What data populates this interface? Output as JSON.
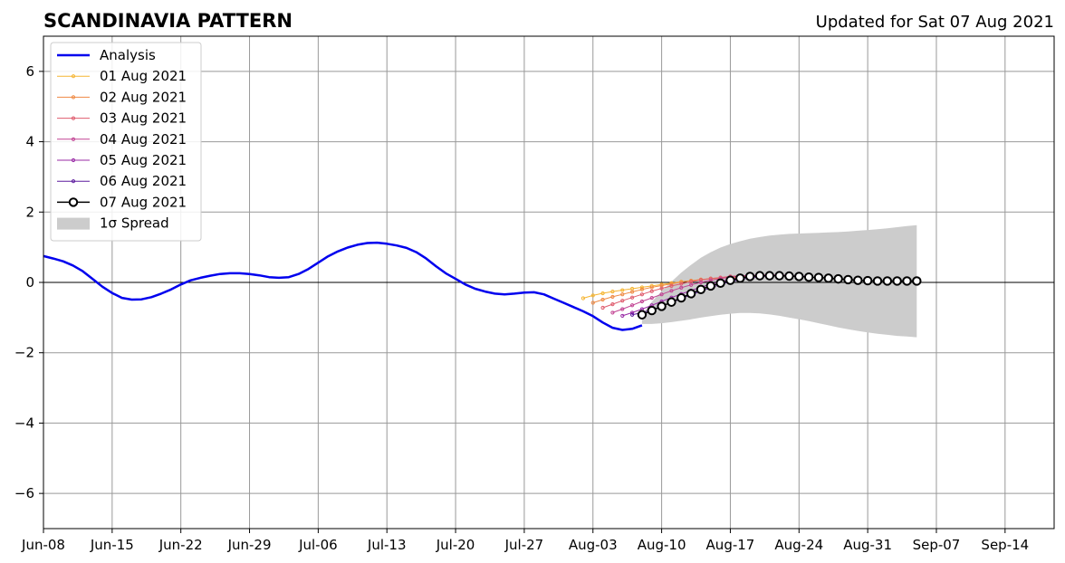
{
  "chart_data": {
    "type": "line",
    "title": "SCANDINAVIA PATTERN",
    "subtitle": "Updated for Sat 07 Aug 2021",
    "xlabel": "",
    "ylabel": "",
    "x_axis": {
      "start": "2021-06-08",
      "end": "2021-09-19",
      "ticks": [
        {
          "date": "2021-06-08",
          "label": "Jun-08"
        },
        {
          "date": "2021-06-15",
          "label": "Jun-15"
        },
        {
          "date": "2021-06-22",
          "label": "Jun-22"
        },
        {
          "date": "2021-06-29",
          "label": "Jun-29"
        },
        {
          "date": "2021-07-06",
          "label": "Jul-06"
        },
        {
          "date": "2021-07-13",
          "label": "Jul-13"
        },
        {
          "date": "2021-07-20",
          "label": "Jul-20"
        },
        {
          "date": "2021-07-27",
          "label": "Jul-27"
        },
        {
          "date": "2021-08-03",
          "label": "Aug-03"
        },
        {
          "date": "2021-08-10",
          "label": "Aug-10"
        },
        {
          "date": "2021-08-17",
          "label": "Aug-17"
        },
        {
          "date": "2021-08-24",
          "label": "Aug-24"
        },
        {
          "date": "2021-08-31",
          "label": "Aug-31"
        },
        {
          "date": "2021-09-07",
          "label": "Sep-07"
        },
        {
          "date": "2021-09-14",
          "label": "Sep-14"
        }
      ]
    },
    "y_axis": {
      "ylim": [
        -7,
        7
      ],
      "ticks": [
        {
          "value": -6,
          "label": "−6"
        },
        {
          "value": -4,
          "label": "−4"
        },
        {
          "value": -2,
          "label": "−2"
        },
        {
          "value": 0,
          "label": "0"
        },
        {
          "value": 2,
          "label": "2"
        },
        {
          "value": 4,
          "label": "4"
        },
        {
          "value": 6,
          "label": "6"
        }
      ]
    },
    "grid": true,
    "zero_line": true,
    "legend_position": "upper-left",
    "analysis": {
      "name": "Analysis",
      "color": "#0000ee",
      "points": [
        [
          "2021-06-08",
          0.75
        ],
        [
          "2021-06-09",
          0.68
        ],
        [
          "2021-06-10",
          0.6
        ],
        [
          "2021-06-11",
          0.48
        ],
        [
          "2021-06-12",
          0.32
        ],
        [
          "2021-06-13",
          0.1
        ],
        [
          "2021-06-14",
          -0.12
        ],
        [
          "2021-06-15",
          -0.3
        ],
        [
          "2021-06-16",
          -0.44
        ],
        [
          "2021-06-17",
          -0.49
        ],
        [
          "2021-06-18",
          -0.48
        ],
        [
          "2021-06-19",
          -0.42
        ],
        [
          "2021-06-20",
          -0.32
        ],
        [
          "2021-06-21",
          -0.2
        ],
        [
          "2021-06-22",
          -0.06
        ],
        [
          "2021-06-23",
          0.06
        ],
        [
          "2021-06-24",
          0.13
        ],
        [
          "2021-06-25",
          0.19
        ],
        [
          "2021-06-26",
          0.24
        ],
        [
          "2021-06-27",
          0.26
        ],
        [
          "2021-06-28",
          0.26
        ],
        [
          "2021-06-29",
          0.24
        ],
        [
          "2021-06-30",
          0.2
        ],
        [
          "2021-07-01",
          0.15
        ],
        [
          "2021-07-02",
          0.13
        ],
        [
          "2021-07-03",
          0.15
        ],
        [
          "2021-07-04",
          0.24
        ],
        [
          "2021-07-05",
          0.38
        ],
        [
          "2021-07-06",
          0.56
        ],
        [
          "2021-07-07",
          0.74
        ],
        [
          "2021-07-08",
          0.88
        ],
        [
          "2021-07-09",
          0.99
        ],
        [
          "2021-07-10",
          1.07
        ],
        [
          "2021-07-11",
          1.12
        ],
        [
          "2021-07-12",
          1.13
        ],
        [
          "2021-07-13",
          1.1
        ],
        [
          "2021-07-14",
          1.05
        ],
        [
          "2021-07-15",
          0.98
        ],
        [
          "2021-07-16",
          0.86
        ],
        [
          "2021-07-17",
          0.68
        ],
        [
          "2021-07-18",
          0.46
        ],
        [
          "2021-07-19",
          0.26
        ],
        [
          "2021-07-20",
          0.1
        ],
        [
          "2021-07-21",
          -0.06
        ],
        [
          "2021-07-22",
          -0.18
        ],
        [
          "2021-07-23",
          -0.26
        ],
        [
          "2021-07-24",
          -0.32
        ],
        [
          "2021-07-25",
          -0.34
        ],
        [
          "2021-07-26",
          -0.32
        ],
        [
          "2021-07-27",
          -0.29
        ],
        [
          "2021-07-28",
          -0.28
        ],
        [
          "2021-07-29",
          -0.34
        ],
        [
          "2021-07-30",
          -0.46
        ],
        [
          "2021-07-31",
          -0.58
        ],
        [
          "2021-08-01",
          -0.7
        ],
        [
          "2021-08-02",
          -0.82
        ],
        [
          "2021-08-03",
          -0.96
        ],
        [
          "2021-08-04",
          -1.14
        ],
        [
          "2021-08-05",
          -1.29
        ],
        [
          "2021-08-06",
          -1.35
        ],
        [
          "2021-08-07",
          -1.32
        ],
        [
          "2021-08-08",
          -1.22
        ]
      ]
    },
    "forecasts": [
      {
        "name": "01 Aug 2021",
        "color": "#f5b533",
        "start": "2021-08-02",
        "values": [
          -0.45,
          -0.37,
          -0.31,
          -0.26,
          -0.22,
          -0.18,
          -0.14,
          -0.1,
          -0.06,
          -0.02,
          0.02,
          0.05,
          0.08,
          0.1,
          0.12,
          0.13,
          0.14,
          0.15
        ]
      },
      {
        "name": "02 Aug 2021",
        "color": "#ef8a44",
        "start": "2021-08-03",
        "values": [
          -0.58,
          -0.49,
          -0.41,
          -0.34,
          -0.27,
          -0.2,
          -0.14,
          -0.09,
          -0.04,
          0.01,
          0.05,
          0.08,
          0.11,
          0.13,
          0.15,
          0.16,
          0.17,
          0.18,
          0.18
        ]
      },
      {
        "name": "03 Aug 2021",
        "color": "#df5c6e",
        "start": "2021-08-04",
        "values": [
          -0.72,
          -0.62,
          -0.52,
          -0.43,
          -0.34,
          -0.25,
          -0.17,
          -0.1,
          -0.04,
          0.02,
          0.07,
          0.11,
          0.14,
          0.17,
          0.19,
          0.2,
          0.21,
          0.21,
          0.21
        ]
      },
      {
        "name": "04 Aug 2021",
        "color": "#c24393",
        "start": "2021-08-05",
        "values": [
          -0.86,
          -0.76,
          -0.65,
          -0.54,
          -0.44,
          -0.34,
          -0.24,
          -0.15,
          -0.07,
          0.0,
          0.06,
          0.11,
          0.15,
          0.18,
          0.2,
          0.21,
          0.21,
          0.21,
          0.2
        ]
      },
      {
        "name": "05 Aug 2021",
        "color": "#9a2ba6",
        "start": "2021-08-06",
        "values": [
          -0.95,
          -0.86,
          -0.76,
          -0.65,
          -0.54,
          -0.43,
          -0.33,
          -0.23,
          -0.14,
          -0.05,
          0.03,
          0.09,
          0.14,
          0.17,
          0.19,
          0.2,
          0.2,
          0.19,
          0.18
        ]
      },
      {
        "name": "06 Aug 2021",
        "color": "#5d1b9e",
        "start": "2021-08-07",
        "values": [
          -0.92,
          -0.86,
          -0.78,
          -0.68,
          -0.57,
          -0.46,
          -0.35,
          -0.25,
          -0.15,
          -0.06,
          0.02,
          0.08,
          0.13,
          0.16,
          0.18,
          0.19,
          0.19,
          0.18,
          0.17
        ]
      },
      {
        "name": "07 Aug 2021",
        "color": "#000000",
        "start": "2021-08-08",
        "values": [
          -0.92,
          -0.8,
          -0.68,
          -0.56,
          -0.44,
          -0.32,
          -0.2,
          -0.1,
          -0.02,
          0.06,
          0.12,
          0.17,
          0.19,
          0.19,
          0.19,
          0.18,
          0.17,
          0.15,
          0.14,
          0.12,
          0.1,
          0.08,
          0.06,
          0.05,
          0.04,
          0.04,
          0.04,
          0.04,
          0.04
        ]
      }
    ],
    "spread": {
      "name": "1σ Spread",
      "color": "#cccccc",
      "start": "2021-08-08",
      "upper": [
        -0.92,
        -0.55,
        -0.25,
        0.02,
        0.28,
        0.5,
        0.7,
        0.86,
        0.99,
        1.09,
        1.17,
        1.24,
        1.29,
        1.33,
        1.36,
        1.38,
        1.39,
        1.4,
        1.41,
        1.42,
        1.43,
        1.45,
        1.47,
        1.49,
        1.51,
        1.54,
        1.57,
        1.6,
        1.63
      ],
      "lower": [
        -1.18,
        -1.18,
        -1.16,
        -1.13,
        -1.09,
        -1.05,
        -1.0,
        -0.96,
        -0.92,
        -0.89,
        -0.87,
        -0.87,
        -0.88,
        -0.91,
        -0.95,
        -1.0,
        -1.05,
        -1.1,
        -1.16,
        -1.22,
        -1.28,
        -1.33,
        -1.38,
        -1.42,
        -1.46,
        -1.49,
        -1.52,
        -1.54,
        -1.56
      ]
    }
  }
}
